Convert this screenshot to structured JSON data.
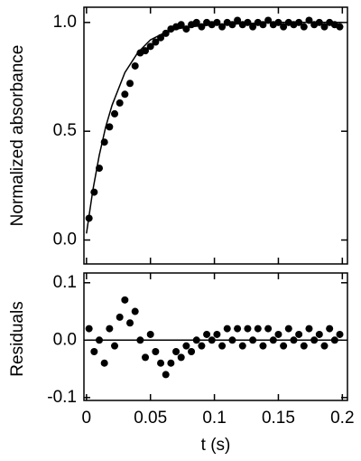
{
  "chart_data": [
    {
      "type": "scatter",
      "y_label": "Normalized absorbance",
      "color": "#000000",
      "show_x_tick_labels": false,
      "xlim": [
        -0.002,
        0.204
      ],
      "xticks": [
        0,
        0.05,
        0.1,
        0.15,
        0.2
      ],
      "ylim": [
        -0.11,
        1.07
      ],
      "yticks": [
        {
          "value": 0,
          "label": "0.0"
        },
        {
          "value": 0.5,
          "label": "0.5"
        },
        {
          "value": 1,
          "label": "1.0"
        }
      ],
      "x": [
        0.002,
        0.006,
        0.01,
        0.014,
        0.018,
        0.022,
        0.026,
        0.03,
        0.034,
        0.038,
        0.042,
        0.046,
        0.05,
        0.054,
        0.058,
        0.062,
        0.066,
        0.07,
        0.074,
        0.078,
        0.082,
        0.086,
        0.09,
        0.094,
        0.098,
        0.102,
        0.106,
        0.11,
        0.114,
        0.118,
        0.122,
        0.126,
        0.13,
        0.134,
        0.138,
        0.142,
        0.146,
        0.15,
        0.154,
        0.158,
        0.162,
        0.166,
        0.17,
        0.174,
        0.178,
        0.182,
        0.186,
        0.19,
        0.194,
        0.198
      ],
      "values": [
        0.1,
        0.22,
        0.33,
        0.45,
        0.52,
        0.58,
        0.63,
        0.67,
        0.72,
        0.8,
        0.86,
        0.87,
        0.89,
        0.91,
        0.93,
        0.95,
        0.97,
        0.98,
        0.99,
        0.97,
        0.99,
        1.0,
        0.98,
        1.0,
        0.99,
        1.0,
        0.98,
        1.0,
        0.99,
        1.01,
        0.99,
        1.0,
        0.98,
        1.0,
        0.99,
        1.01,
        0.99,
        1.0,
        0.98,
        1.0,
        0.99,
        1.0,
        0.98,
        1.01,
        0.99,
        1.0,
        0.98,
        1.0,
        0.99,
        0.98
      ],
      "fit": {
        "x": [
          0,
          0.005,
          0.01,
          0.015,
          0.02,
          0.03,
          0.04,
          0.05,
          0.06,
          0.07,
          0.08,
          0.1,
          0.15,
          0.2
        ],
        "values": [
          0.03,
          0.23,
          0.39,
          0.52,
          0.62,
          0.77,
          0.86,
          0.92,
          0.95,
          0.97,
          0.98,
          0.99,
          1.0,
          1.0
        ]
      }
    },
    {
      "type": "scatter",
      "y_label": "Residuals",
      "x_label": "t (s)",
      "color": "#000000",
      "show_x_tick_labels": true,
      "xlim": [
        -0.002,
        0.204
      ],
      "xticks": [
        0,
        0.05,
        0.1,
        0.15,
        0.2
      ],
      "ylim": [
        -0.105,
        0.117
      ],
      "yticks": [
        0.1,
        {
          "value": 0,
          "label": "0.0"
        },
        -0.1
      ],
      "x": [
        0.002,
        0.006,
        0.01,
        0.014,
        0.018,
        0.022,
        0.026,
        0.03,
        0.034,
        0.038,
        0.042,
        0.046,
        0.05,
        0.054,
        0.058,
        0.062,
        0.066,
        0.07,
        0.074,
        0.078,
        0.082,
        0.086,
        0.09,
        0.094,
        0.098,
        0.102,
        0.106,
        0.11,
        0.114,
        0.118,
        0.122,
        0.126,
        0.13,
        0.134,
        0.138,
        0.142,
        0.146,
        0.15,
        0.154,
        0.158,
        0.162,
        0.166,
        0.17,
        0.174,
        0.178,
        0.182,
        0.186,
        0.19,
        0.194,
        0.198
      ],
      "values": [
        0.02,
        -0.02,
        0.0,
        -0.04,
        0.02,
        -0.01,
        0.04,
        0.07,
        0.03,
        0.05,
        0.0,
        -0.03,
        0.01,
        -0.02,
        -0.04,
        -0.06,
        -0.04,
        -0.02,
        -0.03,
        -0.01,
        -0.02,
        0.0,
        -0.01,
        0.01,
        0.0,
        0.01,
        -0.01,
        0.02,
        0.0,
        0.02,
        -0.01,
        0.02,
        0.0,
        0.02,
        -0.01,
        0.02,
        0.0,
        0.01,
        -0.01,
        0.02,
        0.0,
        0.01,
        -0.01,
        0.02,
        0.0,
        0.01,
        -0.01,
        0.02,
        0.0,
        0.01
      ],
      "fit": {
        "x": [
          0,
          0.2
        ],
        "values": [
          0,
          0
        ]
      }
    }
  ]
}
